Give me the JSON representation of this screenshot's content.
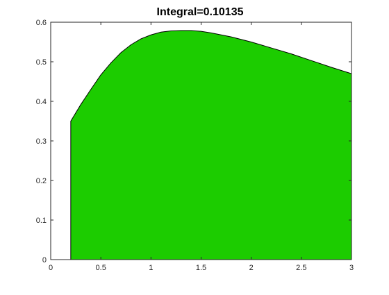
{
  "chart_data": {
    "type": "area",
    "title": "Integral=0.10135",
    "xlabel": "",
    "ylabel": "",
    "xlim": [
      0,
      3
    ],
    "ylim": [
      0,
      0.6
    ],
    "x_ticks": [
      "0",
      "0.5",
      "1",
      "1.5",
      "2",
      "2.5",
      "3"
    ],
    "y_ticks": [
      "0",
      "0.1",
      "0.2",
      "0.3",
      "0.4",
      "0.5",
      "0.6"
    ],
    "grid": false,
    "legend": "none",
    "fill_color": "#1ccc00",
    "edge_color": "#000000",
    "series": [
      {
        "x": [
          0.2,
          0.3,
          0.4,
          0.5,
          0.6,
          0.7,
          0.8,
          0.9,
          1.0,
          1.1,
          1.2,
          1.3,
          1.4,
          1.5,
          1.6,
          1.8,
          2.0,
          2.2,
          2.4,
          2.6,
          2.8,
          3.0
        ],
        "values": [
          0.35,
          0.392,
          0.43,
          0.467,
          0.497,
          0.523,
          0.543,
          0.558,
          0.568,
          0.575,
          0.578,
          0.579,
          0.579,
          0.577,
          0.573,
          0.563,
          0.55,
          0.535,
          0.52,
          0.503,
          0.486,
          0.47
        ]
      }
    ]
  }
}
